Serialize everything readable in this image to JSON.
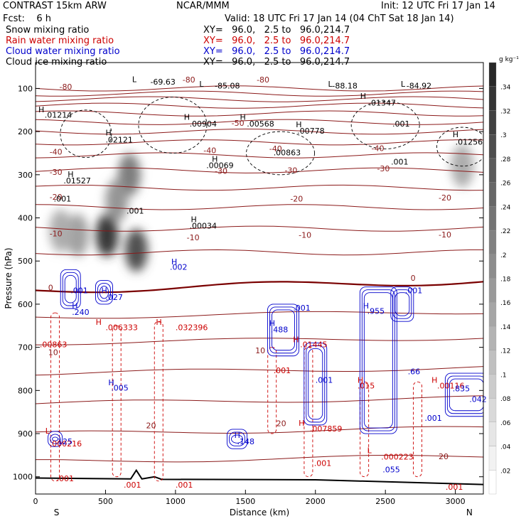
{
  "header": {
    "title_left": "CONTRAST 15km ARW",
    "title_center": "NCAR/MMM",
    "init": "Init: 12 UTC Fri 17 Jan 14",
    "fcst": "Fcst:    6 h",
    "valid": "Valid: 18 UTC Fri 17 Jan 14 (04 ChT Sat 18 Jan 14)"
  },
  "legend": [
    {
      "label": "Snow mixing ratio",
      "xy": "XY=   96.0,   2.5 to   96.0,214.7",
      "color": "#000000"
    },
    {
      "label": "Rain water mixing ratio",
      "xy": "XY=   96.0,   2.5 to   96.0,214.7",
      "color": "#cc0000"
    },
    {
      "label": "Cloud water mixing ratio",
      "xy": "XY=   96.0,   2.5 to   96.0,214.7",
      "color": "#0000cc"
    },
    {
      "label": "Cloud ice mixing ratio",
      "xy": "XY=   96.0,   2.5 to   96.0,214.7",
      "color": "#000000"
    }
  ],
  "colors": {
    "temperature": "#8b1a1a",
    "rain": "#cc0000",
    "cloud_water": "#0000cc",
    "ice": "#000000",
    "freezing": "#7a0000"
  },
  "chart_data": {
    "type": "heatmap",
    "xlabel": "Distance (km)",
    "ylabel": "Pressure (hPa)",
    "xlim": [
      0,
      3200
    ],
    "ylim": [
      1040,
      40
    ],
    "xticks": [
      0,
      500,
      1000,
      1500,
      2000,
      2500,
      3000
    ],
    "xtick_labels": [
      "0",
      "500",
      "1000",
      "1500",
      "2000",
      "2500",
      "3000"
    ],
    "yticks": [
      100,
      200,
      300,
      400,
      500,
      600,
      700,
      800,
      900,
      1000
    ],
    "ytick_labels": [
      "100",
      "200",
      "300",
      "400",
      "500",
      "600",
      "700",
      "800",
      "900",
      "1000"
    ],
    "end_labels": {
      "left": "S",
      "right": "N"
    },
    "colorbar": {
      "unit": "g kg⁻¹",
      "levels": [
        0.02,
        0.04,
        0.06,
        0.08,
        0.1,
        0.12,
        0.14,
        0.16,
        0.18,
        0.2,
        0.22,
        0.24,
        0.26,
        0.28,
        0.3,
        0.32,
        0.34
      ],
      "labels": [
        ".02",
        ".04",
        ".06",
        ".08",
        ".1",
        ".12",
        ".14",
        ".16",
        ".18",
        ".2",
        ".22",
        ".24",
        ".26",
        ".28",
        ".3",
        ".32",
        ".34"
      ]
    },
    "snow_maxima": [
      {
        "x": 510,
        "p": 440,
        "value": 0.34
      },
      {
        "x": 720,
        "p": 475,
        "value": 0.3
      },
      {
        "x": 670,
        "p": 300,
        "value": 0.22
      },
      {
        "x": 580,
        "p": 360,
        "value": 0.18
      },
      {
        "x": 300,
        "p": 440,
        "value": 0.16
      },
      {
        "x": 180,
        "p": 430,
        "value": 0.14
      },
      {
        "x": 3050,
        "p": 280,
        "value": 0.14
      }
    ],
    "temperature_labels": [
      {
        "x": 170,
        "p": 103,
        "t": "-80"
      },
      {
        "x": 1050,
        "p": 86,
        "t": "-80"
      },
      {
        "x": 1580,
        "p": 86,
        "t": "-80"
      },
      {
        "x": 1400,
        "p": 187,
        "t": "-50"
      },
      {
        "x": 1670,
        "p": 246,
        "t": "-40"
      },
      {
        "x": 1200,
        "p": 250,
        "t": "-40"
      },
      {
        "x": 100,
        "p": 253,
        "t": "-40"
      },
      {
        "x": 2400,
        "p": 245,
        "t": "-40"
      },
      {
        "x": 1280,
        "p": 298,
        "t": "-30"
      },
      {
        "x": 1780,
        "p": 296,
        "t": "-30"
      },
      {
        "x": 2440,
        "p": 292,
        "t": "-30"
      },
      {
        "x": 100,
        "p": 300,
        "t": "-30"
      },
      {
        "x": 100,
        "p": 358,
        "t": "-20"
      },
      {
        "x": 1820,
        "p": 362,
        "t": "-20"
      },
      {
        "x": 2880,
        "p": 360,
        "t": "-20"
      },
      {
        "x": 100,
        "p": 443,
        "t": "-10"
      },
      {
        "x": 1080,
        "p": 452,
        "t": "-10"
      },
      {
        "x": 1880,
        "p": 446,
        "t": "-10"
      },
      {
        "x": 2880,
        "p": 445,
        "t": "-10"
      },
      {
        "x": 90,
        "p": 568,
        "t": "0"
      },
      {
        "x": 2680,
        "p": 546,
        "t": "0"
      },
      {
        "x": 90,
        "p": 718,
        "t": "10"
      },
      {
        "x": 1570,
        "p": 714,
        "t": "10"
      },
      {
        "x": 790,
        "p": 888,
        "t": "20"
      },
      {
        "x": 1720,
        "p": 883,
        "t": "20"
      },
      {
        "x": 2880,
        "p": 959,
        "t": "20"
      }
    ],
    "ice_labels": [
      {
        "x": 820,
        "p": 91,
        "t": "-69.63"
      },
      {
        "x": 1280,
        "p": 100,
        "t": "-85.08"
      },
      {
        "x": 2120,
        "p": 100,
        "t": "-88.18"
      },
      {
        "x": 2650,
        "p": 100,
        "t": "-84.92"
      },
      {
        "x": 65,
        "p": 168,
        "t": ".01214"
      },
      {
        "x": 1100,
        "p": 188,
        "t": ".00904"
      },
      {
        "x": 1510,
        "p": 188,
        "t": ".00568"
      },
      {
        "x": 1870,
        "p": 205,
        "t": ".00778"
      },
      {
        "x": 2380,
        "p": 140,
        "t": ".01347"
      },
      {
        "x": 2550,
        "p": 188,
        "t": ".001"
      },
      {
        "x": 3000,
        "p": 230,
        "t": ".01256"
      },
      {
        "x": 500,
        "p": 225,
        "t": ".02121"
      },
      {
        "x": 1700,
        "p": 255,
        "t": ".00863"
      },
      {
        "x": 1220,
        "p": 285,
        "t": ".00069"
      },
      {
        "x": 2540,
        "p": 276,
        "t": ".001"
      },
      {
        "x": 200,
        "p": 320,
        "t": ".01527"
      },
      {
        "x": 130,
        "p": 362,
        "t": ".001"
      },
      {
        "x": 650,
        "p": 390,
        "t": ".001"
      },
      {
        "x": 1100,
        "p": 425,
        "t": ".00034"
      }
    ],
    "rain_labels": [
      {
        "x": 500,
        "p": 660,
        "t": ".006333"
      },
      {
        "x": 1000,
        "p": 660,
        "t": ".032396"
      },
      {
        "x": 30,
        "p": 700,
        "t": ".00863"
      },
      {
        "x": 1890,
        "p": 700,
        "t": ".01445"
      },
      {
        "x": 1700,
        "p": 760,
        "t": ".001"
      },
      {
        "x": 2300,
        "p": 795,
        "t": ".015"
      },
      {
        "x": 2870,
        "p": 795,
        "t": ".00116"
      },
      {
        "x": 1960,
        "p": 895,
        "t": ".007859"
      },
      {
        "x": 100,
        "p": 930,
        "t": ".000216"
      },
      {
        "x": 2470,
        "p": 960,
        "t": ".000223"
      },
      {
        "x": 1990,
        "p": 975,
        "t": ".001"
      },
      {
        "x": 150,
        "p": 1010,
        "t": ".001"
      },
      {
        "x": 630,
        "p": 1025,
        "t": ".001"
      },
      {
        "x": 1000,
        "p": 1025,
        "t": ".001"
      },
      {
        "x": 2930,
        "p": 1030,
        "t": ".001"
      }
    ],
    "cloud_water_labels": [
      {
        "x": 250,
        "p": 575,
        "t": ".001"
      },
      {
        "x": 500,
        "p": 590,
        "t": ".027"
      },
      {
        "x": 260,
        "p": 625,
        "t": ".240"
      },
      {
        "x": 960,
        "p": 520,
        "t": ".002"
      },
      {
        "x": 1840,
        "p": 615,
        "t": ".001"
      },
      {
        "x": 1680,
        "p": 665,
        "t": ".488"
      },
      {
        "x": 2370,
        "p": 622,
        "t": ".955"
      },
      {
        "x": 2640,
        "p": 575,
        "t": ".001"
      },
      {
        "x": 2000,
        "p": 782,
        "t": ".001"
      },
      {
        "x": 2660,
        "p": 762,
        "t": ".66"
      },
      {
        "x": 2980,
        "p": 802,
        "t": ".835"
      },
      {
        "x": 3100,
        "p": 827,
        "t": ".042"
      },
      {
        "x": 2780,
        "p": 870,
        "t": ".001"
      },
      {
        "x": 540,
        "p": 800,
        "t": ".005"
      },
      {
        "x": 1440,
        "p": 925,
        "t": ".148"
      },
      {
        "x": 140,
        "p": 925,
        "t": ".125"
      },
      {
        "x": 2480,
        "p": 990,
        "t": ".055"
      }
    ],
    "max_markers": [
      {
        "x": 690,
        "p": 85,
        "t": "L",
        "cat": "ice"
      },
      {
        "x": 1170,
        "p": 96,
        "t": "L",
        "cat": "ice"
      },
      {
        "x": 2090,
        "p": 96,
        "t": "L",
        "cat": "ice"
      },
      {
        "x": 2610,
        "p": 96,
        "t": "L",
        "cat": "ice"
      },
      {
        "x": 20,
        "p": 155,
        "t": "H",
        "cat": "ice"
      },
      {
        "x": 1060,
        "p": 173,
        "t": "H",
        "cat": "ice"
      },
      {
        "x": 1460,
        "p": 173,
        "t": "H",
        "cat": "ice"
      },
      {
        "x": 1860,
        "p": 190,
        "t": "H",
        "cat": "ice"
      },
      {
        "x": 2320,
        "p": 124,
        "t": "H",
        "cat": "ice"
      },
      {
        "x": 500,
        "p": 209,
        "t": "H",
        "cat": "ice"
      },
      {
        "x": 2980,
        "p": 213,
        "t": "H",
        "cat": "ice"
      },
      {
        "x": 1260,
        "p": 270,
        "t": "H",
        "cat": "ice"
      },
      {
        "x": 230,
        "p": 305,
        "t": "H",
        "cat": "ice"
      },
      {
        "x": 1110,
        "p": 410,
        "t": "H",
        "cat": "ice"
      },
      {
        "x": 470,
        "p": 575,
        "t": "H",
        "cat": "cloud"
      },
      {
        "x": 970,
        "p": 508,
        "t": "H",
        "cat": "cloud"
      },
      {
        "x": 260,
        "p": 610,
        "t": "H",
        "cat": "cloud"
      },
      {
        "x": 1670,
        "p": 650,
        "t": "H",
        "cat": "cloud"
      },
      {
        "x": 2340,
        "p": 610,
        "t": "H",
        "cat": "cloud"
      },
      {
        "x": 520,
        "p": 788,
        "t": "H",
        "cat": "cloud"
      },
      {
        "x": 1420,
        "p": 910,
        "t": "H",
        "cat": "cloud"
      },
      {
        "x": 430,
        "p": 648,
        "t": "H",
        "cat": "rain"
      },
      {
        "x": 860,
        "p": 648,
        "t": "H",
        "cat": "rain"
      },
      {
        "x": 1840,
        "p": 688,
        "t": "H",
        "cat": "rain"
      },
      {
        "x": 2300,
        "p": 782,
        "t": "H",
        "cat": "rain"
      },
      {
        "x": 2830,
        "p": 782,
        "t": "H",
        "cat": "rain"
      },
      {
        "x": 1880,
        "p": 882,
        "t": "H",
        "cat": "rain"
      },
      {
        "x": 70,
        "p": 900,
        "t": "L",
        "cat": "rain"
      },
      {
        "x": 2370,
        "p": 945,
        "t": "L",
        "cat": "rain"
      }
    ]
  }
}
